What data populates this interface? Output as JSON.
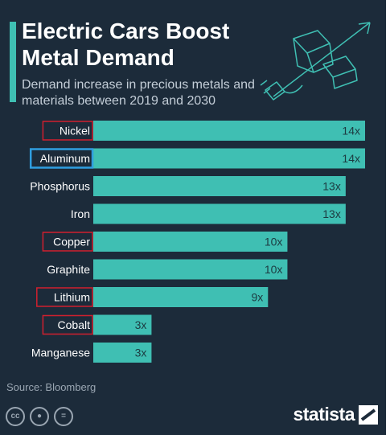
{
  "header": {
    "title": "Electric Cars Boost Metal Demand",
    "subtitle": "Demand increase in precious metals and materials between 2019 and 2030"
  },
  "chart_data": {
    "type": "bar",
    "orientation": "horizontal",
    "categories": [
      "Nickel",
      "Aluminum",
      "Phosphorus",
      "Iron",
      "Copper",
      "Graphite",
      "Lithium",
      "Cobalt",
      "Manganese"
    ],
    "values": [
      14,
      14,
      13,
      13,
      10,
      10,
      9,
      3,
      3
    ],
    "value_labels": [
      "14x",
      "14x",
      "13x",
      "13x",
      "10x",
      "10x",
      "9x",
      "3x",
      "3x"
    ],
    "xlim": [
      0,
      14
    ],
    "grid": false,
    "highlighted": {
      "Nickel": "red",
      "Aluminum": "blue",
      "Copper": "red",
      "Lithium": "red",
      "Cobalt": "red"
    }
  },
  "footer": {
    "source": "Source: Bloomberg",
    "brand": "statista"
  },
  "colors": {
    "background": "#1c2b3a",
    "bar": "#3fbfb3",
    "accent": "#3fbfb3",
    "highlight_red": "#d0202e",
    "highlight_blue": "#2f9ee0",
    "text": "#ffffff",
    "muted_text": "#9aa6b2"
  },
  "icons": [
    "car-battery-illustration",
    "plug-icon",
    "trend-arrow-icon",
    "creative-commons-icon",
    "attribution-icon",
    "no-derivatives-icon",
    "statista-logo-icon"
  ]
}
